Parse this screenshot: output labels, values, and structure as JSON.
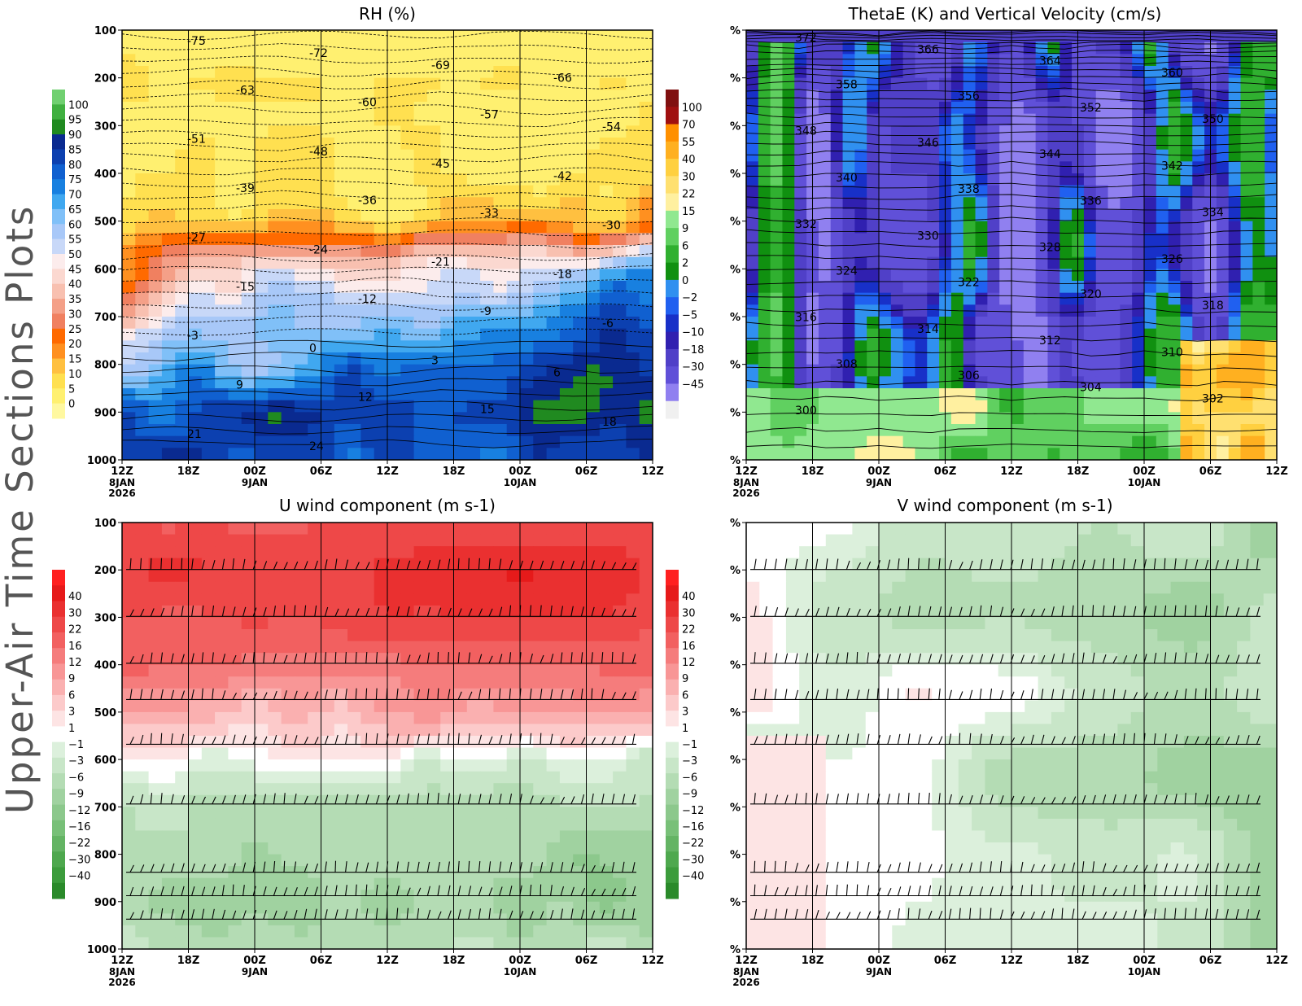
{
  "side_title": "Upper-Air Time Sections Plots",
  "time_axis": {
    "ticks": [
      "12Z",
      "18Z",
      "00Z",
      "06Z",
      "12Z",
      "18Z",
      "00Z",
      "06Z",
      "12Z"
    ],
    "sublabels": [
      [
        "8JAN",
        "2026"
      ],
      [],
      [
        "9JAN"
      ],
      [],
      [],
      [],
      [
        "10JAN"
      ],
      [],
      []
    ]
  },
  "pressure_levels": [
    "100",
    "200",
    "300",
    "400",
    "500",
    "600",
    "700",
    "800",
    "900",
    "1000"
  ],
  "placeholder_tick": "%",
  "colors": {
    "rh_palette": [
      "#f0f0f0",
      "#fff8a0",
      "#fff070",
      "#ffe050",
      "#ffc040",
      "#ff9020",
      "#ff6a00",
      "#f08060",
      "#f4a088",
      "#f8c0b0",
      "#fbd8d0",
      "#fcecec",
      "#c8d8f8",
      "#a8c8f8",
      "#80c0f8",
      "#40a8f0",
      "#1880e0",
      "#1060d0",
      "#0c40b0",
      "#0a2a90",
      "#208a20",
      "#40b040",
      "#70d070"
    ],
    "thetae_palette": [
      "#f0f0f0",
      "#8070e8",
      "#9080f0",
      "#6050d8",
      "#5040c8",
      "#3020b0",
      "#1830c8",
      "#2060f0",
      "#3090f0",
      "#109010",
      "#30b030",
      "#60d060",
      "#90e890",
      "#fff0a0",
      "#ffe070",
      "#ffd040",
      "#ffb020",
      "#ff9000",
      "#d04020",
      "#a01010",
      "#801010"
    ],
    "wind_palette": [
      "#2a8a2a",
      "#3c9c3c",
      "#4ea84e",
      "#64b464",
      "#78c078",
      "#8cc88c",
      "#a0d2a0",
      "#b4dcb4",
      "#c8e6c8",
      "#dcf0dc",
      "#ffffff",
      "#fde4e4",
      "#fccaca",
      "#fab0b0",
      "#f89696",
      "#f57c7c",
      "#f26060",
      "#ee4848",
      "#ea3030",
      "#e61a1a",
      "#ff2020"
    ]
  },
  "chart_data": [
    {
      "type": "heatmap",
      "title": "RH (%)",
      "xlabel": "",
      "ylabel": "",
      "ylim": [
        1000,
        100
      ],
      "overlay": "temperature contours",
      "colorbar": [
        "100",
        "95",
        "90",
        "85",
        "80",
        "75",
        "70",
        "65",
        "60",
        "55",
        "50",
        "45",
        "40",
        "35",
        "30",
        "25",
        "20",
        "15",
        "10",
        "5",
        "0"
      ],
      "contour_labels": [
        "-75",
        "-72",
        "-69",
        "-66",
        "-63",
        "-60",
        "-57",
        "-54",
        "-51",
        "-48",
        "-45",
        "-42",
        "-39",
        "-36",
        "-33",
        "-30",
        "-27",
        "-24",
        "-21",
        "-18",
        "-15",
        "-12",
        "-9",
        "-6",
        "-3",
        "0",
        "3",
        "6",
        "9",
        "12",
        "15",
        "18",
        "21",
        "24"
      ],
      "rh_by_level": [
        {
          "p": 100,
          "rh": [
            10,
            5,
            5,
            5,
            5,
            5,
            5,
            5,
            5
          ]
        },
        {
          "p": 200,
          "rh": [
            10,
            10,
            10,
            10,
            10,
            10,
            10,
            10,
            10
          ]
        },
        {
          "p": 300,
          "rh": [
            10,
            10,
            10,
            10,
            10,
            10,
            10,
            10,
            10
          ]
        },
        {
          "p": 400,
          "rh": [
            10,
            10,
            10,
            10,
            10,
            10,
            10,
            10,
            10
          ]
        },
        {
          "p": 500,
          "rh": [
            10,
            10,
            15,
            20,
            10,
            20,
            25,
            15,
            20
          ]
        },
        {
          "p": 600,
          "rh": [
            25,
            40,
            55,
            45,
            50,
            60,
            55,
            60,
            80
          ]
        },
        {
          "p": 700,
          "rh": [
            40,
            60,
            60,
            65,
            70,
            65,
            70,
            85,
            85
          ]
        },
        {
          "p": 800,
          "rh": [
            65,
            75,
            60,
            80,
            80,
            75,
            80,
            90,
            90
          ]
        },
        {
          "p": 900,
          "rh": [
            85,
            85,
            90,
            90,
            85,
            85,
            90,
            95,
            95
          ]
        },
        {
          "p": 1000,
          "rh": [
            85,
            85,
            85,
            85,
            85,
            85,
            85,
            85,
            85
          ]
        }
      ]
    },
    {
      "type": "heatmap",
      "title": "ThetaE (K) and Vertical Velocity (cm/s)",
      "xlabel": "",
      "ylabel": "",
      "overlay": "theta-e contours",
      "colorbar": [
        "100",
        "70",
        "55",
        "40",
        "30",
        "22",
        "15",
        "9",
        "6",
        "2",
        "0",
        "−2",
        "−5",
        "−10",
        "−18",
        "−30",
        "−45"
      ],
      "contour_labels": [
        "372",
        "366",
        "364",
        "360",
        "358",
        "356",
        "352",
        "350",
        "348",
        "346",
        "344",
        "342",
        "340",
        "338",
        "336",
        "334",
        "332",
        "330",
        "328",
        "326",
        "324",
        "322",
        "320",
        "318",
        "316",
        "314",
        "312",
        "310",
        "308",
        "306",
        "304",
        "302",
        "300"
      ]
    },
    {
      "type": "heatmap",
      "title": "U wind component (m s-1)",
      "xlabel": "",
      "ylabel": "",
      "ylim": [
        1000,
        100
      ],
      "overlay": "wind barbs",
      "colorbar": [
        "40",
        "30",
        "22",
        "16",
        "12",
        "9",
        "6",
        "3",
        "1",
        "−1",
        "−3",
        "−6",
        "−9",
        "−12",
        "−16",
        "−22",
        "−30",
        "−40"
      ],
      "u_by_level": [
        {
          "p": 100,
          "u": [
            22,
            22,
            22,
            22,
            22,
            22,
            22,
            22,
            22
          ]
        },
        {
          "p": 200,
          "u": [
            30,
            30,
            30,
            30,
            30,
            40,
            40,
            40,
            30
          ]
        },
        {
          "p": 300,
          "u": [
            22,
            22,
            22,
            22,
            30,
            30,
            30,
            30,
            22
          ]
        },
        {
          "p": 400,
          "u": [
            16,
            16,
            16,
            16,
            16,
            16,
            16,
            16,
            16
          ]
        },
        {
          "p": 500,
          "u": [
            6,
            6,
            6,
            6,
            9,
            9,
            9,
            9,
            9
          ]
        },
        {
          "p": 600,
          "u": [
            -1,
            1,
            -1,
            1,
            -1,
            -1,
            -3,
            -3,
            -3
          ]
        },
        {
          "p": 700,
          "u": [
            -6,
            -6,
            -6,
            -6,
            -6,
            -6,
            -6,
            -6,
            -6
          ]
        },
        {
          "p": 800,
          "u": [
            -6,
            -6,
            -9,
            -6,
            -9,
            -9,
            -9,
            -12,
            -9
          ]
        },
        {
          "p": 900,
          "u": [
            -6,
            -9,
            -9,
            -9,
            -9,
            -9,
            -9,
            -12,
            -9
          ]
        },
        {
          "p": 1000,
          "u": [
            -6,
            -6,
            -6,
            -6,
            -6,
            -6,
            -6,
            -6,
            -6
          ]
        }
      ]
    },
    {
      "type": "heatmap",
      "title": "V wind component (m s-1)",
      "xlabel": "",
      "ylabel": "",
      "overlay": "wind barbs",
      "colorbar": [
        "40",
        "30",
        "22",
        "16",
        "12",
        "9",
        "6",
        "3",
        "1",
        "−1",
        "−3",
        "−6",
        "−9",
        "−12",
        "−16",
        "−22",
        "−30",
        "−40"
      ]
    }
  ]
}
